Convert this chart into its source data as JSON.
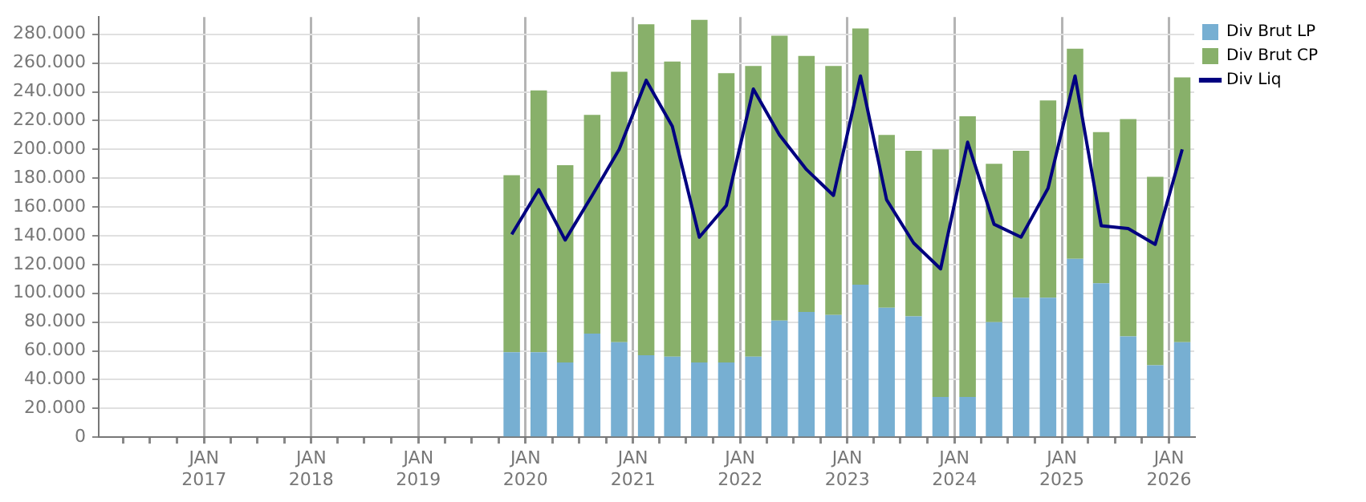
{
  "chart_data": {
    "type": "bar",
    "stacked": true,
    "x": [
      "2019-11-15",
      "2020-02-15",
      "2020-05-15",
      "2020-08-15",
      "2020-11-15",
      "2021-02-15",
      "2021-05-15",
      "2021-08-15",
      "2021-11-15",
      "2022-02-15",
      "2022-05-15",
      "2022-08-15",
      "2022-11-15",
      "2023-02-15",
      "2023-05-15",
      "2023-08-15",
      "2023-11-15",
      "2024-02-15",
      "2024-05-15",
      "2024-08-15",
      "2024-11-15",
      "2025-02-15",
      "2025-05-15",
      "2025-08-15",
      "2025-11-15",
      "2026-02-15"
    ],
    "series": [
      {
        "name": "Div Brut LP",
        "color": "#77afd2",
        "values": [
          59000,
          59000,
          52000,
          72000,
          66000,
          57000,
          56000,
          52000,
          52000,
          56000,
          81000,
          87000,
          85000,
          106000,
          90000,
          84000,
          28000,
          28000,
          80000,
          97000,
          97000,
          124000,
          107000,
          70000,
          50000,
          66000
        ]
      },
      {
        "name": "Div Brut CP",
        "color": "#88b06a",
        "values": [
          123000,
          182000,
          137000,
          152000,
          188000,
          230000,
          205000,
          238000,
          201000,
          202000,
          198000,
          178000,
          173000,
          178000,
          120000,
          115000,
          172000,
          195000,
          110000,
          102000,
          137000,
          146000,
          105000,
          151000,
          131000,
          184000
        ]
      },
      {
        "name": "Div Liq",
        "type": "line",
        "color": "#000080",
        "values": [
          141000,
          172000,
          137000,
          168000,
          200000,
          248000,
          216000,
          139000,
          161000,
          242000,
          210000,
          186000,
          168000,
          251000,
          165000,
          135000,
          117000,
          205000,
          148000,
          139000,
          173000,
          251000,
          147000,
          145000,
          134000,
          200000
        ]
      }
    ],
    "xlim": [
      "2016-01-08",
      "2026-03-28"
    ],
    "xticks": [
      {
        "value": "2016-04-01",
        "label": null
      },
      {
        "value": "2016-07-01",
        "label": null
      },
      {
        "value": "2016-10-01",
        "label": null
      },
      {
        "value": "2017-01-01",
        "label": "JAN 2017"
      },
      {
        "value": "2017-04-01",
        "label": null
      },
      {
        "value": "2017-07-01",
        "label": null
      },
      {
        "value": "2017-10-01",
        "label": null
      },
      {
        "value": "2018-01-01",
        "label": "JAN 2018"
      },
      {
        "value": "2018-04-01",
        "label": null
      },
      {
        "value": "2018-07-01",
        "label": null
      },
      {
        "value": "2018-10-01",
        "label": null
      },
      {
        "value": "2019-01-01",
        "label": "JAN 2019"
      },
      {
        "value": "2019-04-01",
        "label": null
      },
      {
        "value": "2019-07-01",
        "label": null
      },
      {
        "value": "2019-10-01",
        "label": null
      },
      {
        "value": "2020-01-01",
        "label": "JAN 2020"
      },
      {
        "value": "2020-04-01",
        "label": null
      },
      {
        "value": "2020-07-01",
        "label": null
      },
      {
        "value": "2020-10-01",
        "label": null
      },
      {
        "value": "2021-01-01",
        "label": "JAN 2021"
      },
      {
        "value": "2021-04-01",
        "label": null
      },
      {
        "value": "2021-07-01",
        "label": null
      },
      {
        "value": "2021-10-01",
        "label": null
      },
      {
        "value": "2022-01-01",
        "label": "JAN 2022"
      },
      {
        "value": "2022-04-01",
        "label": null
      },
      {
        "value": "2022-07-01",
        "label": null
      },
      {
        "value": "2022-10-01",
        "label": null
      },
      {
        "value": "2023-01-01",
        "label": "JAN 2023"
      },
      {
        "value": "2023-04-01",
        "label": null
      },
      {
        "value": "2023-07-01",
        "label": null
      },
      {
        "value": "2023-10-01",
        "label": null
      },
      {
        "value": "2024-01-01",
        "label": "JAN 2024"
      },
      {
        "value": "2024-04-01",
        "label": null
      },
      {
        "value": "2024-07-01",
        "label": null
      },
      {
        "value": "2024-10-01",
        "label": null
      },
      {
        "value": "2025-01-01",
        "label": "JAN 2025"
      },
      {
        "value": "2025-04-01",
        "label": null
      },
      {
        "value": "2025-07-01",
        "label": null
      },
      {
        "value": "2025-10-01",
        "label": null
      },
      {
        "value": "2026-01-01",
        "label": "JAN 2026"
      }
    ],
    "ylim": [
      0,
      292000
    ],
    "yticks": [
      {
        "value": 0,
        "label": "0"
      },
      {
        "value": 20000,
        "label": "20.000"
      },
      {
        "value": 40000,
        "label": "40.000"
      },
      {
        "value": 60000,
        "label": "60.000"
      },
      {
        "value": 80000,
        "label": "80.000"
      },
      {
        "value": 100000,
        "label": "100.000"
      },
      {
        "value": 120000,
        "label": "120.000"
      },
      {
        "value": 140000,
        "label": "140.000"
      },
      {
        "value": 160000,
        "label": "160.000"
      },
      {
        "value": 180000,
        "label": "180.000"
      },
      {
        "value": 200000,
        "label": "200.000"
      },
      {
        "value": 220000,
        "label": "220.000"
      },
      {
        "value": 240000,
        "label": "240.000"
      },
      {
        "value": 260000,
        "label": "260.000"
      },
      {
        "value": 280000,
        "label": "280.000"
      }
    ],
    "grid": true,
    "legend": "top right"
  }
}
